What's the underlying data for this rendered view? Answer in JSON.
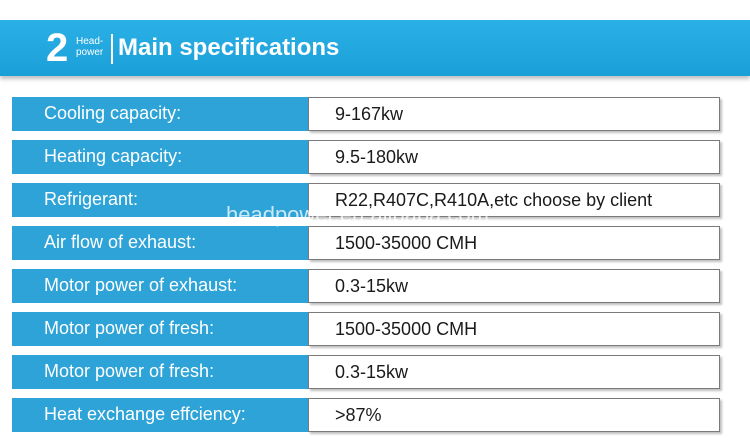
{
  "banner": {
    "number": "2",
    "brand_line1": "Head-",
    "brand_line2": "power",
    "title": "Main specifications"
  },
  "watermark": "headpower.en.alibaba.com",
  "specs": [
    {
      "label": "Cooling capacity:",
      "value": "9-167kw"
    },
    {
      "label": "Heating capacity:",
      "value": "9.5-180kw"
    },
    {
      "label": "Refrigerant:",
      "value": "R22,R407C,R410A,etc choose by client"
    },
    {
      "label": "Air flow of exhaust:",
      "value": "1500-35000 CMH"
    },
    {
      "label": "Motor power of exhaust:",
      "value": "0.3-15kw"
    },
    {
      "label": "Motor power of fresh:",
      "value": "1500-35000 CMH"
    },
    {
      "label": "Motor power of fresh:",
      "value": "0.3-15kw"
    },
    {
      "label": "Heat exchange effciency:",
      "value": ">87%"
    }
  ]
}
